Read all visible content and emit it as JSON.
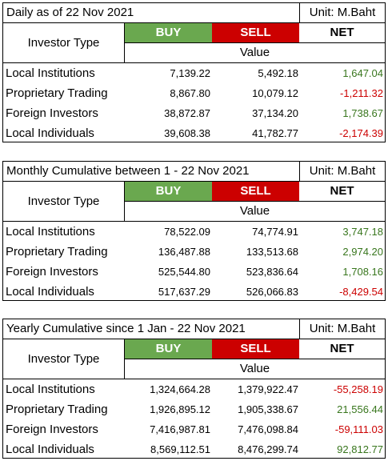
{
  "headers": {
    "investor_type": "Investor Type",
    "buy": "BUY",
    "sell": "SELL",
    "net": "NET",
    "value": "Value",
    "unit": "Unit: M.Baht"
  },
  "colors": {
    "buy_bg": "#6aa84f",
    "sell_bg": "#cc0000",
    "positive_text": "#38761d",
    "negative_text": "#cc0000"
  },
  "tables": [
    {
      "title": "Daily as of 22 Nov 2021",
      "rows": [
        {
          "investor": "Local Institutions",
          "buy": "7,139.22",
          "sell": "5,492.18",
          "net": "1,647.04",
          "sign": "pos"
        },
        {
          "investor": "Proprietary Trading",
          "buy": "8,867.80",
          "sell": "10,079.12",
          "net": "-1,211.32",
          "sign": "neg"
        },
        {
          "investor": "Foreign Investors",
          "buy": "38,872.87",
          "sell": "37,134.20",
          "net": "1,738.67",
          "sign": "pos"
        },
        {
          "investor": "Local Individuals",
          "buy": "39,608.38",
          "sell": "41,782.77",
          "net": "-2,174.39",
          "sign": "neg"
        }
      ]
    },
    {
      "title": "Monthly Cumulative between 1 - 22 Nov 2021",
      "rows": [
        {
          "investor": "Local Institutions",
          "buy": "78,522.09",
          "sell": "74,774.91",
          "net": "3,747.18",
          "sign": "pos"
        },
        {
          "investor": "Proprietary Trading",
          "buy": "136,487.88",
          "sell": "133,513.68",
          "net": "2,974.20",
          "sign": "pos"
        },
        {
          "investor": "Foreign Investors",
          "buy": "525,544.80",
          "sell": "523,836.64",
          "net": "1,708.16",
          "sign": "pos"
        },
        {
          "investor": "Local Individuals",
          "buy": "517,637.29",
          "sell": "526,066.83",
          "net": "-8,429.54",
          "sign": "neg"
        }
      ]
    },
    {
      "title": "Yearly Cumulative since 1 Jan - 22 Nov 2021",
      "rows": [
        {
          "investor": "Local Institutions",
          "buy": "1,324,664.28",
          "sell": "1,379,922.47",
          "net": "-55,258.19",
          "sign": "neg"
        },
        {
          "investor": "Proprietary Trading",
          "buy": "1,926,895.12",
          "sell": "1,905,338.67",
          "net": "21,556.44",
          "sign": "pos"
        },
        {
          "investor": "Foreign Investors",
          "buy": "7,416,987.81",
          "sell": "7,476,098.84",
          "net": "-59,111.03",
          "sign": "neg"
        },
        {
          "investor": "Local Individuals",
          "buy": "8,569,112.51",
          "sell": "8,476,299.74",
          "net": "92,812.77",
          "sign": "pos"
        }
      ]
    }
  ]
}
